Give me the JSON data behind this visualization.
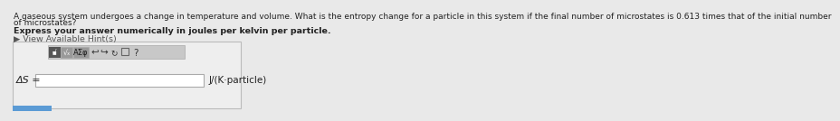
{
  "bg_color": "#e9e9e9",
  "text_color": "#222222",
  "gray_text_color": "#555555",
  "question_line1": "A gaseous system undergoes a change in temperature and volume. What is the entropy change for a particle in this system if the final number of microstates is 0.613 times that of the initial number",
  "question_line2": "of microstates?",
  "express_text": "Express your answer numerically in joules per kelvin per particle.",
  "hint_text": "▶ View Available Hint(s)",
  "delta_s_label": "ΔS =",
  "units_label": "J/(K·particle)",
  "input_box_color": "#ffffff",
  "outer_box_bg": "#eeeeee",
  "outer_box_edge": "#bbbbbb",
  "toolbar_bg": "#c8c8c8",
  "toolbar_edge": "#aaaaaa",
  "dark_btn_color": "#555555",
  "sqrt_btn_color": "#999999",
  "asigma_btn_color": "#999999",
  "bottom_bar_color": "#5b9bd5",
  "question_fontsize": 6.5,
  "express_fontsize": 6.8,
  "hint_fontsize": 6.8,
  "label_fontsize": 8.0,
  "units_fontsize": 7.5,
  "toolbar_text_fontsize": 6.5,
  "icon_fontsize": 7.5
}
